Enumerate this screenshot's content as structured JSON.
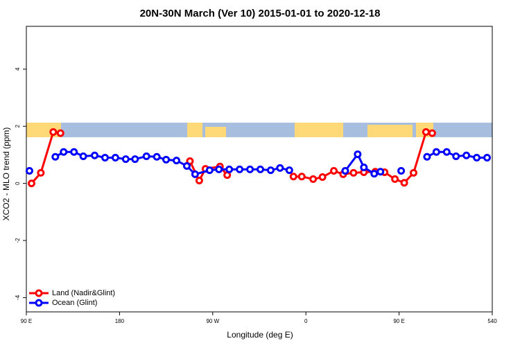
{
  "chart_data": {
    "type": "line",
    "title": "20N-30N March (Ver 10)   2015-01-01 to 2020-12-18",
    "x_label": "Longitude (deg E)",
    "y_label": "XCO2 - MLO trend (ppm)",
    "xlim": [
      90,
      540
    ],
    "ylim": [
      -4.5,
      5.5
    ],
    "xticks": [
      {
        "value": 90,
        "label": "90 E"
      },
      180,
      {
        "value": 270,
        "label": "90 W"
      },
      {
        "value": 360,
        "label": "0"
      },
      {
        "value": 450,
        "label": "90 E"
      },
      540
    ],
    "yticks": [
      -4,
      -2,
      0,
      2,
      4
    ],
    "legend": "bottom-left",
    "series": [
      {
        "name": "Land (Nadir&Glint)",
        "color": "#ff0000",
        "x": [
          95,
          104,
          116,
          123,
          null,
          248,
          257,
          263,
          277,
          284,
          null,
          348,
          356,
          367,
          376,
          387,
          396,
          406,
          416,
          427,
          436,
          446,
          455,
          464,
          476,
          482
        ],
        "values": [
          0.0,
          0.37,
          1.8,
          1.76,
          null,
          0.78,
          0.1,
          0.51,
          0.59,
          0.29,
          null,
          0.24,
          0.24,
          0.15,
          0.22,
          0.44,
          0.32,
          0.37,
          0.39,
          0.41,
          0.39,
          0.15,
          0.02,
          0.37,
          1.8,
          1.76
        ]
      },
      {
        "name": "Ocean (Glint)",
        "color": "#0000ff",
        "x": [
          93,
          null,
          118,
          126,
          136,
          145,
          156,
          166,
          176,
          186,
          195,
          206,
          216,
          225,
          235,
          245,
          253,
          267,
          276,
          286,
          296,
          306,
          316,
          326,
          335,
          344,
          null,
          398,
          410,
          416,
          426,
          432,
          null,
          452,
          null,
          477,
          486,
          496,
          505,
          515,
          525,
          535
        ],
        "values": [
          0.44,
          null,
          0.93,
          1.1,
          1.1,
          0.95,
          0.98,
          0.9,
          0.9,
          0.85,
          0.85,
          0.95,
          0.93,
          0.83,
          0.8,
          0.61,
          0.32,
          0.46,
          0.49,
          0.49,
          0.49,
          0.49,
          0.49,
          0.46,
          0.54,
          0.46,
          null,
          0.44,
          1.02,
          0.56,
          0.34,
          0.41,
          null,
          0.44,
          null,
          0.93,
          1.1,
          1.1,
          0.95,
          0.98,
          0.9,
          0.9
        ]
      }
    ]
  }
}
